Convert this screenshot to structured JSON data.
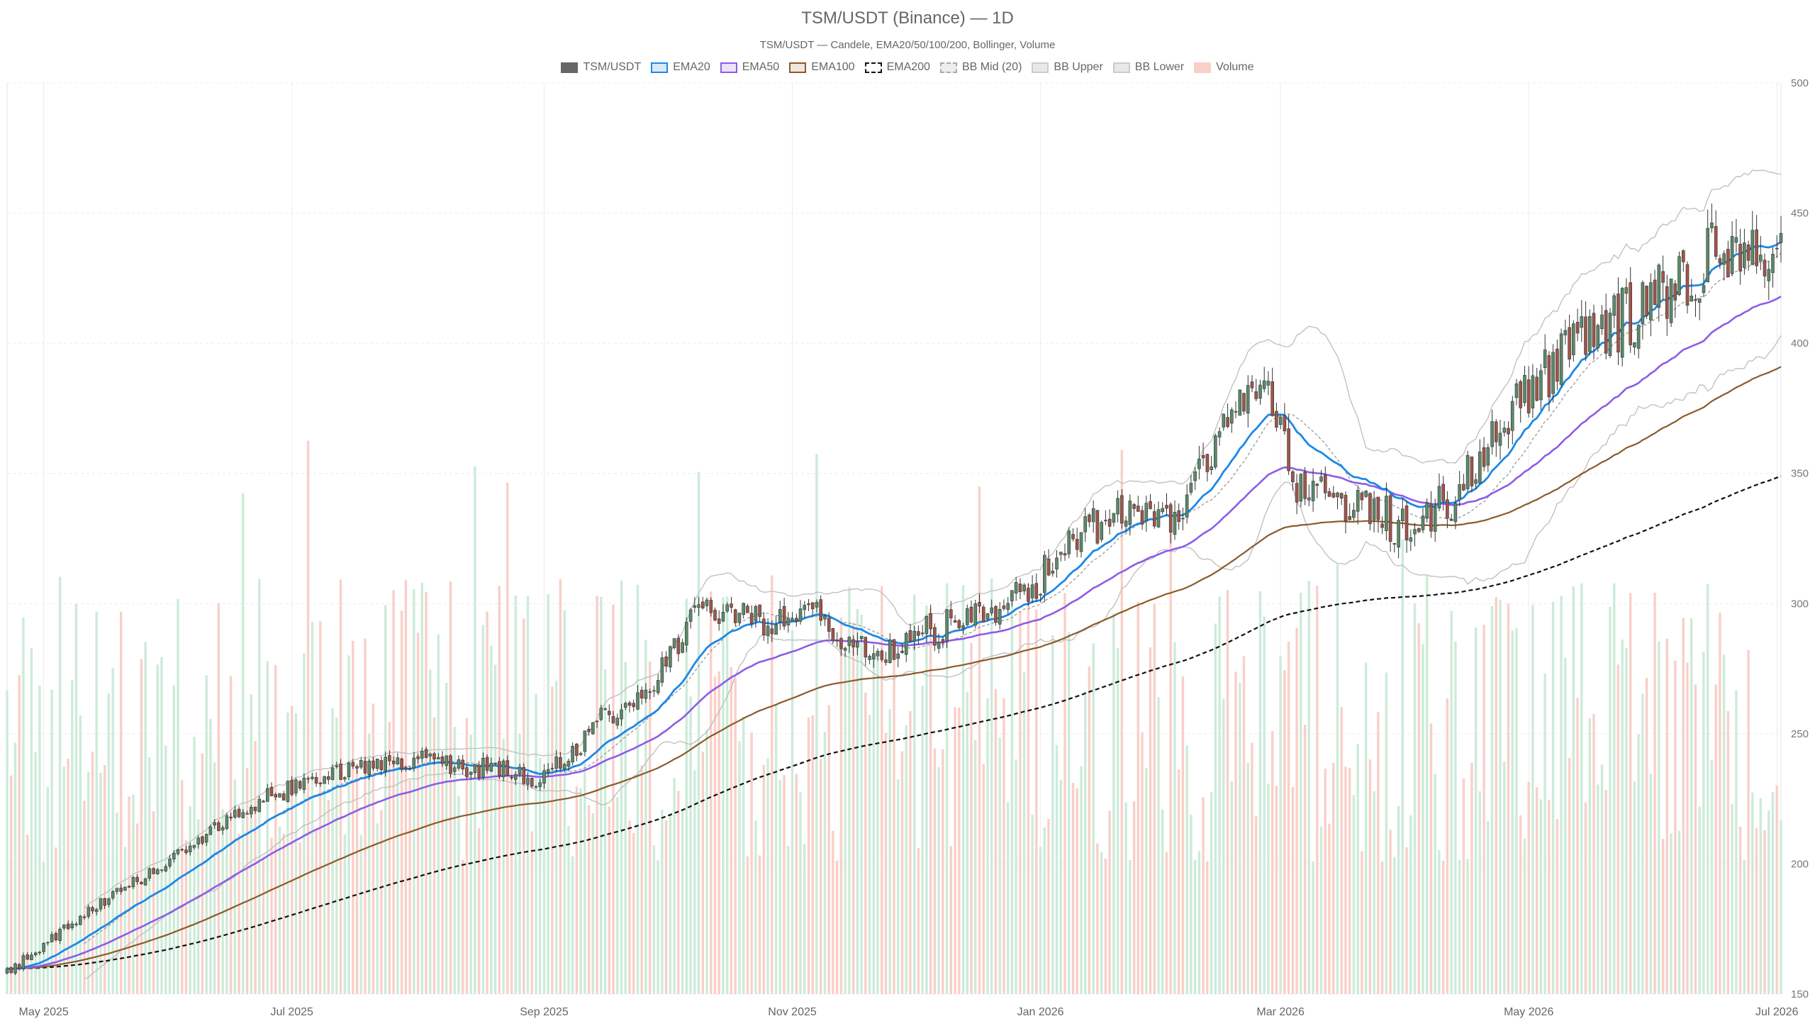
{
  "title": "TSM/USDT (Binance) — 1D",
  "subtitle": "TSM/USDT — Candele, EMA20/50/100/200, Bollinger, Volume",
  "legend": [
    {
      "label": "TSM/USDT",
      "fill": "#666666",
      "stroke": "#666666",
      "style": "solid"
    },
    {
      "label": "EMA20",
      "fill": "#d9e9f7",
      "stroke": "#1e88e5",
      "style": "solid"
    },
    {
      "label": "EMA50",
      "fill": "#ece3fb",
      "stroke": "#8e5ce6",
      "style": "solid"
    },
    {
      "label": "EMA100",
      "fill": "#efe6dd",
      "stroke": "#8b5a2b",
      "style": "solid"
    },
    {
      "label": "EMA200",
      "fill": "#ffffff",
      "stroke": "#111111",
      "style": "dashed"
    },
    {
      "label": "BB Mid (20)",
      "fill": "#eeeeee",
      "stroke": "#aaaaaa",
      "style": "dashed"
    },
    {
      "label": "BB Upper",
      "fill": "#e8e8e8",
      "stroke": "#cccccc",
      "style": "solid"
    },
    {
      "label": "BB Lower",
      "fill": "#e8e8e8",
      "stroke": "#cccccc",
      "style": "solid"
    },
    {
      "label": "Volume",
      "fill": "#f8d0c8",
      "stroke": "#f8d0c8",
      "style": "solid"
    }
  ],
  "chart_data": {
    "type": "candlestick",
    "interval": "1D",
    "x_range": [
      "2025-04-22",
      "2026-07-02"
    ],
    "ylim": [
      150,
      500
    ],
    "y_ticks": [
      150,
      200,
      250,
      300,
      350,
      400,
      450,
      500
    ],
    "x_ticks": [
      "May 2025",
      "Jul 2025",
      "Sep 2025",
      "Nov 2025",
      "Jan 2026",
      "Mar 2026",
      "May 2026",
      "Jul 2026"
    ],
    "grid": true,
    "legend_position": "top-center",
    "colors": {
      "up": "#5a8a6a",
      "down": "#a0554a",
      "volume_up": "#cdebd9",
      "volume_down": "#f8d0c8"
    },
    "close_anchors": [
      {
        "date": "2025-04-22",
        "close": 158
      },
      {
        "date": "2025-05-10",
        "close": 180
      },
      {
        "date": "2025-05-25",
        "close": 194
      },
      {
        "date": "2025-06-10",
        "close": 212
      },
      {
        "date": "2025-06-25",
        "close": 226
      },
      {
        "date": "2025-07-15",
        "close": 236
      },
      {
        "date": "2025-07-28",
        "close": 240
      },
      {
        "date": "2025-08-20",
        "close": 236
      },
      {
        "date": "2025-09-01",
        "close": 232
      },
      {
        "date": "2025-09-15",
        "close": 255
      },
      {
        "date": "2025-09-28",
        "close": 270
      },
      {
        "date": "2025-10-10",
        "close": 300
      },
      {
        "date": "2025-10-25",
        "close": 293
      },
      {
        "date": "2025-11-05",
        "close": 298
      },
      {
        "date": "2025-11-15",
        "close": 285
      },
      {
        "date": "2025-11-25",
        "close": 280
      },
      {
        "date": "2025-12-05",
        "close": 290
      },
      {
        "date": "2025-12-18",
        "close": 296
      },
      {
        "date": "2025-12-28",
        "close": 303
      },
      {
        "date": "2026-01-10",
        "close": 328
      },
      {
        "date": "2026-01-25",
        "close": 336
      },
      {
        "date": "2026-02-05",
        "close": 333
      },
      {
        "date": "2026-02-15",
        "close": 372
      },
      {
        "date": "2026-02-25",
        "close": 380
      },
      {
        "date": "2026-03-05",
        "close": 345
      },
      {
        "date": "2026-03-20",
        "close": 340
      },
      {
        "date": "2026-04-01",
        "close": 327
      },
      {
        "date": "2026-04-12",
        "close": 340
      },
      {
        "date": "2026-04-25",
        "close": 370
      },
      {
        "date": "2026-05-10",
        "close": 395
      },
      {
        "date": "2026-05-25",
        "close": 410
      },
      {
        "date": "2026-06-10",
        "close": 428
      },
      {
        "date": "2026-06-20",
        "close": 438
      },
      {
        "date": "2026-07-02",
        "close": 440
      }
    ],
    "ema20_end": 439,
    "ema50_end": 418,
    "ema100_end": 391,
    "ema200_end": 349,
    "bb_upper_end": 465,
    "bb_lower_end": 403,
    "bb_period": 20
  }
}
